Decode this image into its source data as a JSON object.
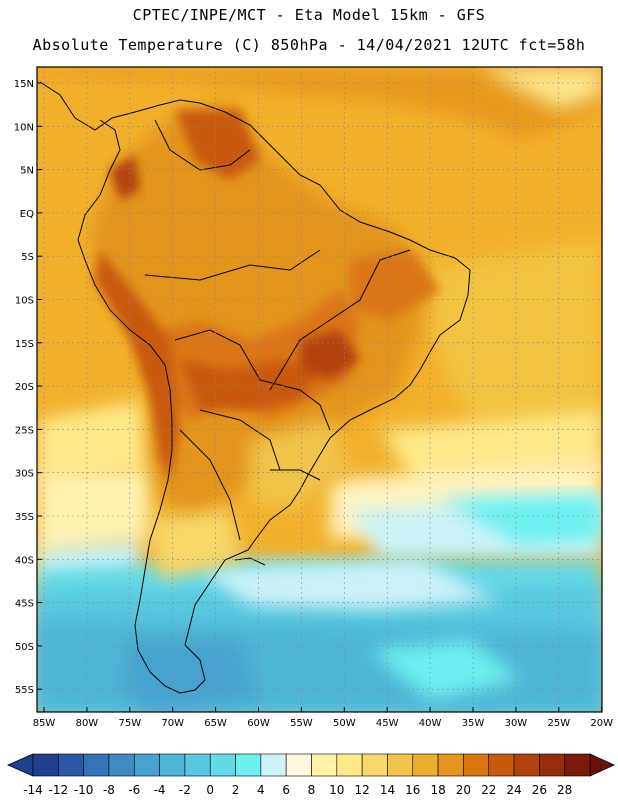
{
  "title_line1": "CPTEC/INPE/MCT -  Eta Model 15km - GFS",
  "title_line2": "Absolute Temperature (C) 850hPa - 14/04/2021 12UTC fct=58h",
  "lat_labels": [
    "15N",
    "10N",
    "5N",
    "EQ",
    "5S",
    "10S",
    "15S",
    "20S",
    "25S",
    "30S",
    "35S",
    "40S",
    "45S",
    "50S",
    "55S"
  ],
  "lon_labels": [
    "85W",
    "80W",
    "75W",
    "70W",
    "65W",
    "60W",
    "55W",
    "50W",
    "45W",
    "40W",
    "35W",
    "30W",
    "25W",
    "20W"
  ],
  "colorbar": {
    "labels": [
      "-14",
      "-12",
      "-10",
      "-8",
      "-6",
      "-4",
      "-2",
      "0",
      "2",
      "4",
      "6",
      "8",
      "10",
      "12",
      "14",
      "16",
      "18",
      "20",
      "22",
      "24",
      "26",
      "28"
    ],
    "colors": [
      "#1f3f8f",
      "#2a5aa6",
      "#3573b8",
      "#3f8cc4",
      "#47a2cf",
      "#4fb6d8",
      "#58c8e0",
      "#62dbe8",
      "#6ef0f0",
      "#cdf3f8",
      "#fff8e0",
      "#fff3a8",
      "#fde98a",
      "#f8d86a",
      "#f2c44a",
      "#ebad2e",
      "#e3951e",
      "#da7612",
      "#c85a0e",
      "#b2420c",
      "#952c0a",
      "#7a1a08"
    ]
  }
}
